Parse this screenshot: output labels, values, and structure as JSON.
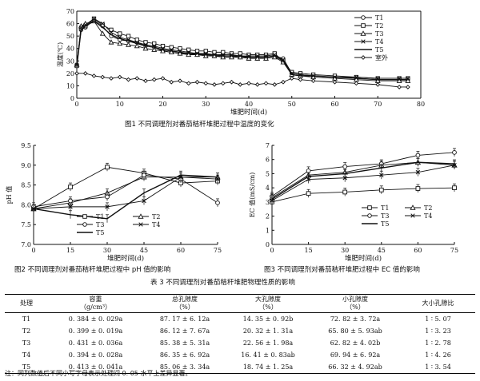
{
  "fig1": {
    "caption": "图1   不同调理剂对番茄秸秆堆肥过程中温度的变化",
    "chart_data": {
      "type": "line",
      "xlabel": "堆肥时间(d)",
      "ylabel": "温度(℃)",
      "xlim": [
        0,
        80
      ],
      "ylim": [
        0,
        70
      ],
      "xticks": [
        0,
        10,
        20,
        30,
        40,
        50,
        60,
        70,
        80
      ],
      "yticks": [
        0,
        10,
        20,
        30,
        40,
        50,
        60,
        70
      ],
      "legend": "top-right",
      "series": [
        {
          "name": "T1",
          "marker": "circle",
          "x": [
            0,
            1,
            2,
            4,
            6,
            8,
            10,
            12,
            14,
            16,
            18,
            20,
            22,
            24,
            26,
            28,
            30,
            32,
            34,
            36,
            38,
            40,
            42,
            44,
            46,
            48,
            50,
            52,
            55,
            60,
            65,
            70,
            75,
            77
          ],
          "y": [
            26,
            55,
            57,
            63,
            58,
            50,
            47,
            46,
            45,
            42,
            41,
            38,
            37,
            36,
            36,
            35,
            35,
            34,
            34,
            34,
            33,
            33,
            33,
            33,
            34,
            32,
            20,
            19,
            18,
            17,
            16,
            15,
            15,
            15
          ]
        },
        {
          "name": "T2",
          "marker": "square",
          "x": [
            0,
            1,
            2,
            4,
            6,
            8,
            10,
            12,
            14,
            16,
            18,
            20,
            22,
            24,
            26,
            28,
            30,
            32,
            34,
            36,
            38,
            40,
            42,
            44,
            46,
            48,
            50,
            52,
            55,
            60,
            65,
            70,
            75,
            77
          ],
          "y": [
            26,
            56,
            58,
            64,
            59,
            55,
            52,
            50,
            47,
            45,
            44,
            42,
            41,
            40,
            39,
            38,
            38,
            37,
            37,
            36,
            36,
            35,
            35,
            35,
            36,
            30,
            21,
            20,
            19,
            18,
            17,
            16,
            16,
            16
          ]
        },
        {
          "name": "T3",
          "marker": "triangle",
          "x": [
            0,
            1,
            2,
            4,
            6,
            8,
            10,
            12,
            14,
            16,
            18,
            20,
            22,
            24,
            26,
            28,
            30,
            32,
            34,
            36,
            38,
            40,
            42,
            44,
            46,
            48,
            50,
            52,
            55,
            60,
            65,
            70,
            75,
            77
          ],
          "y": [
            27,
            58,
            60,
            62,
            52,
            45,
            44,
            43,
            42,
            40,
            39,
            38,
            37,
            36,
            35,
            35,
            34,
            34,
            33,
            33,
            33,
            32,
            32,
            32,
            33,
            29,
            19,
            18,
            17,
            16,
            15,
            14,
            14,
            14
          ]
        },
        {
          "name": "T4",
          "marker": "cross",
          "x": [
            0,
            1,
            2,
            4,
            6,
            8,
            10,
            12,
            14,
            16,
            18,
            20,
            22,
            24,
            26,
            28,
            30,
            32,
            34,
            36,
            38,
            40,
            42,
            44,
            46,
            48,
            50,
            52,
            55,
            60,
            65,
            70,
            75,
            77
          ],
          "y": [
            27,
            57,
            59,
            64,
            60,
            53,
            49,
            47,
            45,
            43,
            42,
            40,
            39,
            38,
            37,
            36,
            36,
            35,
            35,
            35,
            34,
            34,
            34,
            34,
            35,
            31,
            20,
            19,
            18,
            17,
            17,
            16,
            16,
            16
          ]
        },
        {
          "name": "T5",
          "marker": "none",
          "x": [
            0,
            1,
            2,
            4,
            6,
            8,
            10,
            12,
            14,
            16,
            18,
            20,
            22,
            24,
            26,
            28,
            30,
            32,
            34,
            36,
            38,
            40,
            42,
            44,
            46,
            48,
            50,
            52,
            55,
            60,
            65,
            70,
            75,
            77
          ],
          "y": [
            26,
            55,
            58,
            62,
            57,
            51,
            48,
            46,
            44,
            42,
            41,
            39,
            38,
            37,
            36,
            36,
            35,
            35,
            34,
            34,
            34,
            33,
            33,
            33,
            34,
            30,
            19,
            18,
            18,
            17,
            16,
            15,
            15,
            15
          ]
        },
        {
          "name": "室外",
          "marker": "diamond",
          "x": [
            0,
            2,
            4,
            6,
            8,
            10,
            12,
            14,
            16,
            18,
            20,
            22,
            24,
            26,
            28,
            30,
            32,
            34,
            36,
            38,
            40,
            42,
            44,
            46,
            48,
            50,
            52,
            55,
            60,
            65,
            70,
            75,
            77
          ],
          "y": [
            20,
            20,
            18,
            17,
            16,
            17,
            15,
            16,
            14,
            15,
            16,
            13,
            14,
            12,
            13,
            12,
            11,
            12,
            13,
            11,
            12,
            11,
            12,
            11,
            13,
            16,
            15,
            14,
            13,
            12,
            11,
            9,
            9
          ]
        }
      ]
    }
  },
  "fig2": {
    "caption": "图2   不同调理剂对番茄秸秆堆肥过程中 pH 值的影响",
    "chart_data": {
      "type": "line",
      "xlabel": "堆肥时间(d)",
      "ylabel": "pH 值",
      "xlim": [
        0,
        75
      ],
      "ylim": [
        7.0,
        9.5
      ],
      "xticks": [
        0,
        15,
        30,
        45,
        60,
        75
      ],
      "yticks": [
        7.0,
        7.5,
        8.0,
        8.5,
        9.0,
        9.5
      ],
      "legend": "bottom-center",
      "series": [
        {
          "name": "T1",
          "marker": "square",
          "x": [
            0,
            15,
            30,
            45,
            60,
            75
          ],
          "y": [
            7.9,
            8.45,
            8.95,
            8.8,
            8.55,
            8.6
          ]
        },
        {
          "name": "T2",
          "marker": "triangle",
          "x": [
            0,
            15,
            30,
            45,
            60,
            75
          ],
          "y": [
            7.9,
            8.05,
            8.3,
            8.7,
            8.7,
            8.7
          ]
        },
        {
          "name": "T3",
          "marker": "circle",
          "x": [
            0,
            15,
            30,
            45,
            60,
            75
          ],
          "y": [
            7.95,
            8.1,
            8.2,
            8.75,
            8.65,
            8.05
          ]
        },
        {
          "name": "T4",
          "marker": "cross",
          "x": [
            0,
            15,
            30,
            45,
            60,
            75
          ],
          "y": [
            7.9,
            7.95,
            7.95,
            8.1,
            8.7,
            8.65
          ]
        },
        {
          "name": "T5",
          "marker": "none",
          "x": [
            0,
            15,
            30,
            45,
            60,
            75
          ],
          "y": [
            7.9,
            7.75,
            7.65,
            8.3,
            8.75,
            8.7
          ]
        }
      ]
    }
  },
  "fig3": {
    "caption": "图3   不同调理剂对番茄秸秆堆肥过程中 EC 值的影响",
    "chart_data": {
      "type": "line",
      "xlabel": "堆肥时间(d)",
      "ylabel": "EC 值(mS/cm)",
      "xlim": [
        0,
        75
      ],
      "ylim": [
        0,
        7
      ],
      "xticks": [
        0,
        15,
        30,
        45,
        60,
        75
      ],
      "yticks": [
        0,
        1,
        2,
        3,
        4,
        5,
        6,
        7
      ],
      "legend": "bottom-right",
      "series": [
        {
          "name": "T1",
          "marker": "square",
          "x": [
            0,
            15,
            30,
            45,
            60,
            75
          ],
          "y": [
            3.0,
            3.6,
            3.7,
            3.85,
            3.95,
            4.0
          ]
        },
        {
          "name": "T2",
          "marker": "triangle",
          "x": [
            0,
            15,
            30,
            45,
            60,
            75
          ],
          "y": [
            3.3,
            4.9,
            5.1,
            5.6,
            5.8,
            5.6
          ]
        },
        {
          "name": "T3",
          "marker": "circle",
          "x": [
            0,
            15,
            30,
            45,
            60,
            75
          ],
          "y": [
            3.4,
            5.2,
            5.5,
            5.7,
            6.3,
            6.5
          ]
        },
        {
          "name": "T4",
          "marker": "cross",
          "x": [
            0,
            15,
            30,
            45,
            60,
            75
          ],
          "y": [
            3.1,
            4.6,
            4.7,
            4.9,
            5.1,
            5.6
          ]
        },
        {
          "name": "T5",
          "marker": "none",
          "x": [
            0,
            15,
            30,
            45,
            60,
            75
          ],
          "y": [
            3.2,
            4.8,
            5.0,
            5.4,
            5.8,
            5.7
          ]
        }
      ]
    }
  },
  "table3": {
    "title": "表 3   不同调理剂对番茄秸秆堆肥物理性质的影响",
    "headers": {
      "c0": "处理",
      "c1a": "容重",
      "c1b": "（g/cm³）",
      "c2a": "总孔隙度",
      "c2b": "（%）",
      "c3a": "大孔隙度",
      "c3b": "（%）",
      "c4a": "小孔隙度",
      "c4b": "（%）",
      "c5": "大小孔隙比"
    },
    "rows": [
      [
        "T1",
        "0. 384 ± 0. 029a",
        "87. 17 ± 6. 12a",
        "14. 35 ± 0. 92b",
        "72. 82 ± 3. 72a",
        "1 ∶ 5. 07"
      ],
      [
        "T2",
        "0. 399 ± 0. 019a",
        "86. 12 ± 7. 67a",
        "20. 32 ± 1. 31a",
        "65. 80 ± 5. 93ab",
        "1 ∶ 3. 23"
      ],
      [
        "T3",
        "0. 431 ± 0. 036a",
        "85. 38 ± 5. 31a",
        "22. 56 ± 1. 98a",
        "62. 82 ± 4. 02b",
        "1 ∶ 2. 78"
      ],
      [
        "T4",
        "0. 394 ± 0. 028a",
        "86. 35 ± 6. 92a",
        "16. 41 ± 0. 83ab",
        "69. 94 ± 6. 92a",
        "1 ∶ 4. 26"
      ],
      [
        "T5",
        "0. 413 ± 0. 041a",
        "85. 06 ± 3. 34a",
        "18. 74 ± 1. 25a",
        "66. 32 ± 4. 92ab",
        "1 ∶ 3. 54"
      ]
    ],
    "note": "注：同列数值后不同小写字母表示处理间 0. 05 水平上差异显著。"
  }
}
